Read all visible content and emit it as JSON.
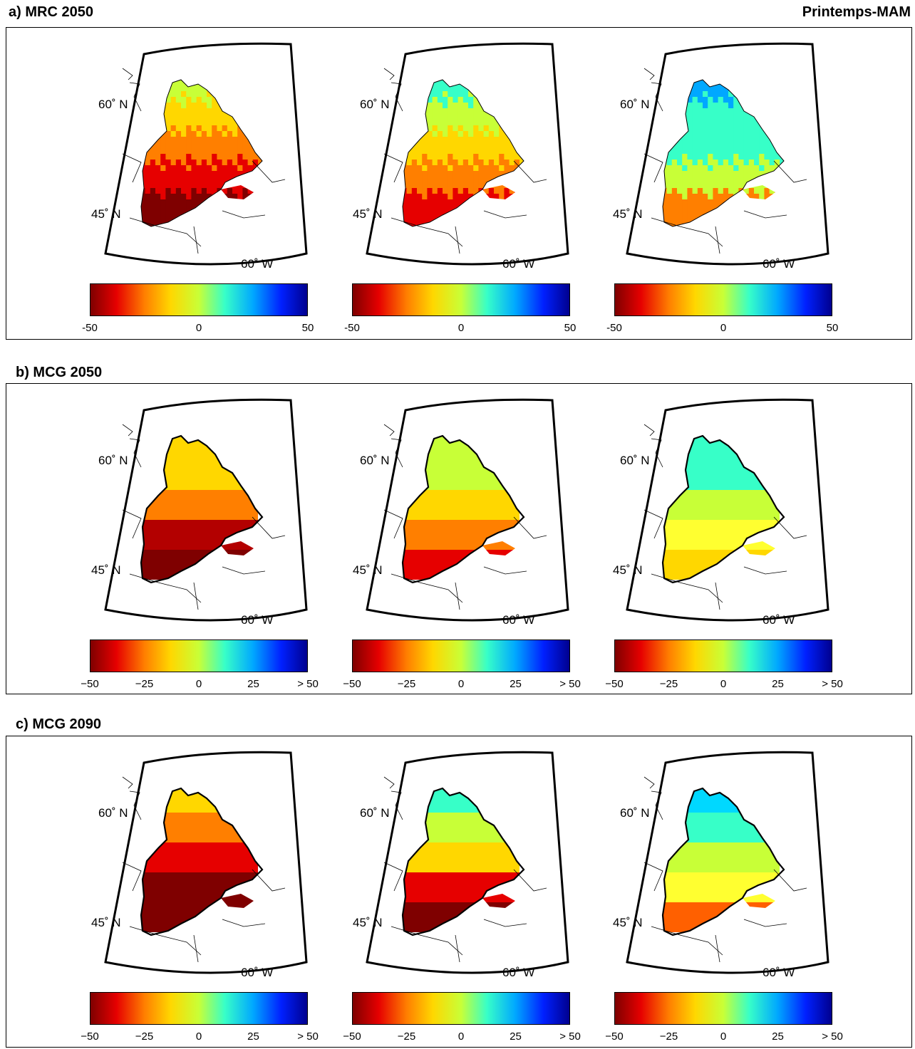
{
  "header": {
    "title_a": "a) MRC 2050",
    "season": "Printemps-MAM"
  },
  "panels": [
    {
      "id": "a",
      "title": "a) MRC 2050",
      "ticks": [
        "-50",
        "0",
        "50"
      ],
      "maps": [
        {
          "style": "fine",
          "palette": "red"
        },
        {
          "style": "fine",
          "palette": "orange"
        },
        {
          "style": "fine",
          "palette": "blue"
        }
      ]
    },
    {
      "id": "b",
      "title": "b) MCG 2050",
      "ticks": [
        "−50",
        "−25",
        "0",
        "25",
        "> 50"
      ],
      "maps": [
        {
          "style": "coarse",
          "palette": "b1"
        },
        {
          "style": "coarse",
          "palette": "b2"
        },
        {
          "style": "coarse",
          "palette": "b3"
        }
      ]
    },
    {
      "id": "c",
      "title": "c) MCG 2090",
      "ticks": [
        "−50",
        "−25",
        "0",
        "25",
        "> 50"
      ],
      "maps": [
        {
          "style": "coarse",
          "palette": "c1"
        },
        {
          "style": "coarse",
          "palette": "c2"
        },
        {
          "style": "coarse",
          "palette": "c3"
        }
      ]
    }
  ],
  "map_labels": {
    "lat_high": "60˚ N",
    "lat_low": "45˚ N",
    "lon": "60˚ W"
  },
  "colorbar": {
    "min": -50,
    "max": 50,
    "colors": [
      "#7f0000",
      "#e60000",
      "#ff7f00",
      "#ffd700",
      "#c8ff37",
      "#37ffc8",
      "#00a8ff",
      "#0020ff",
      "#00008f"
    ]
  }
}
